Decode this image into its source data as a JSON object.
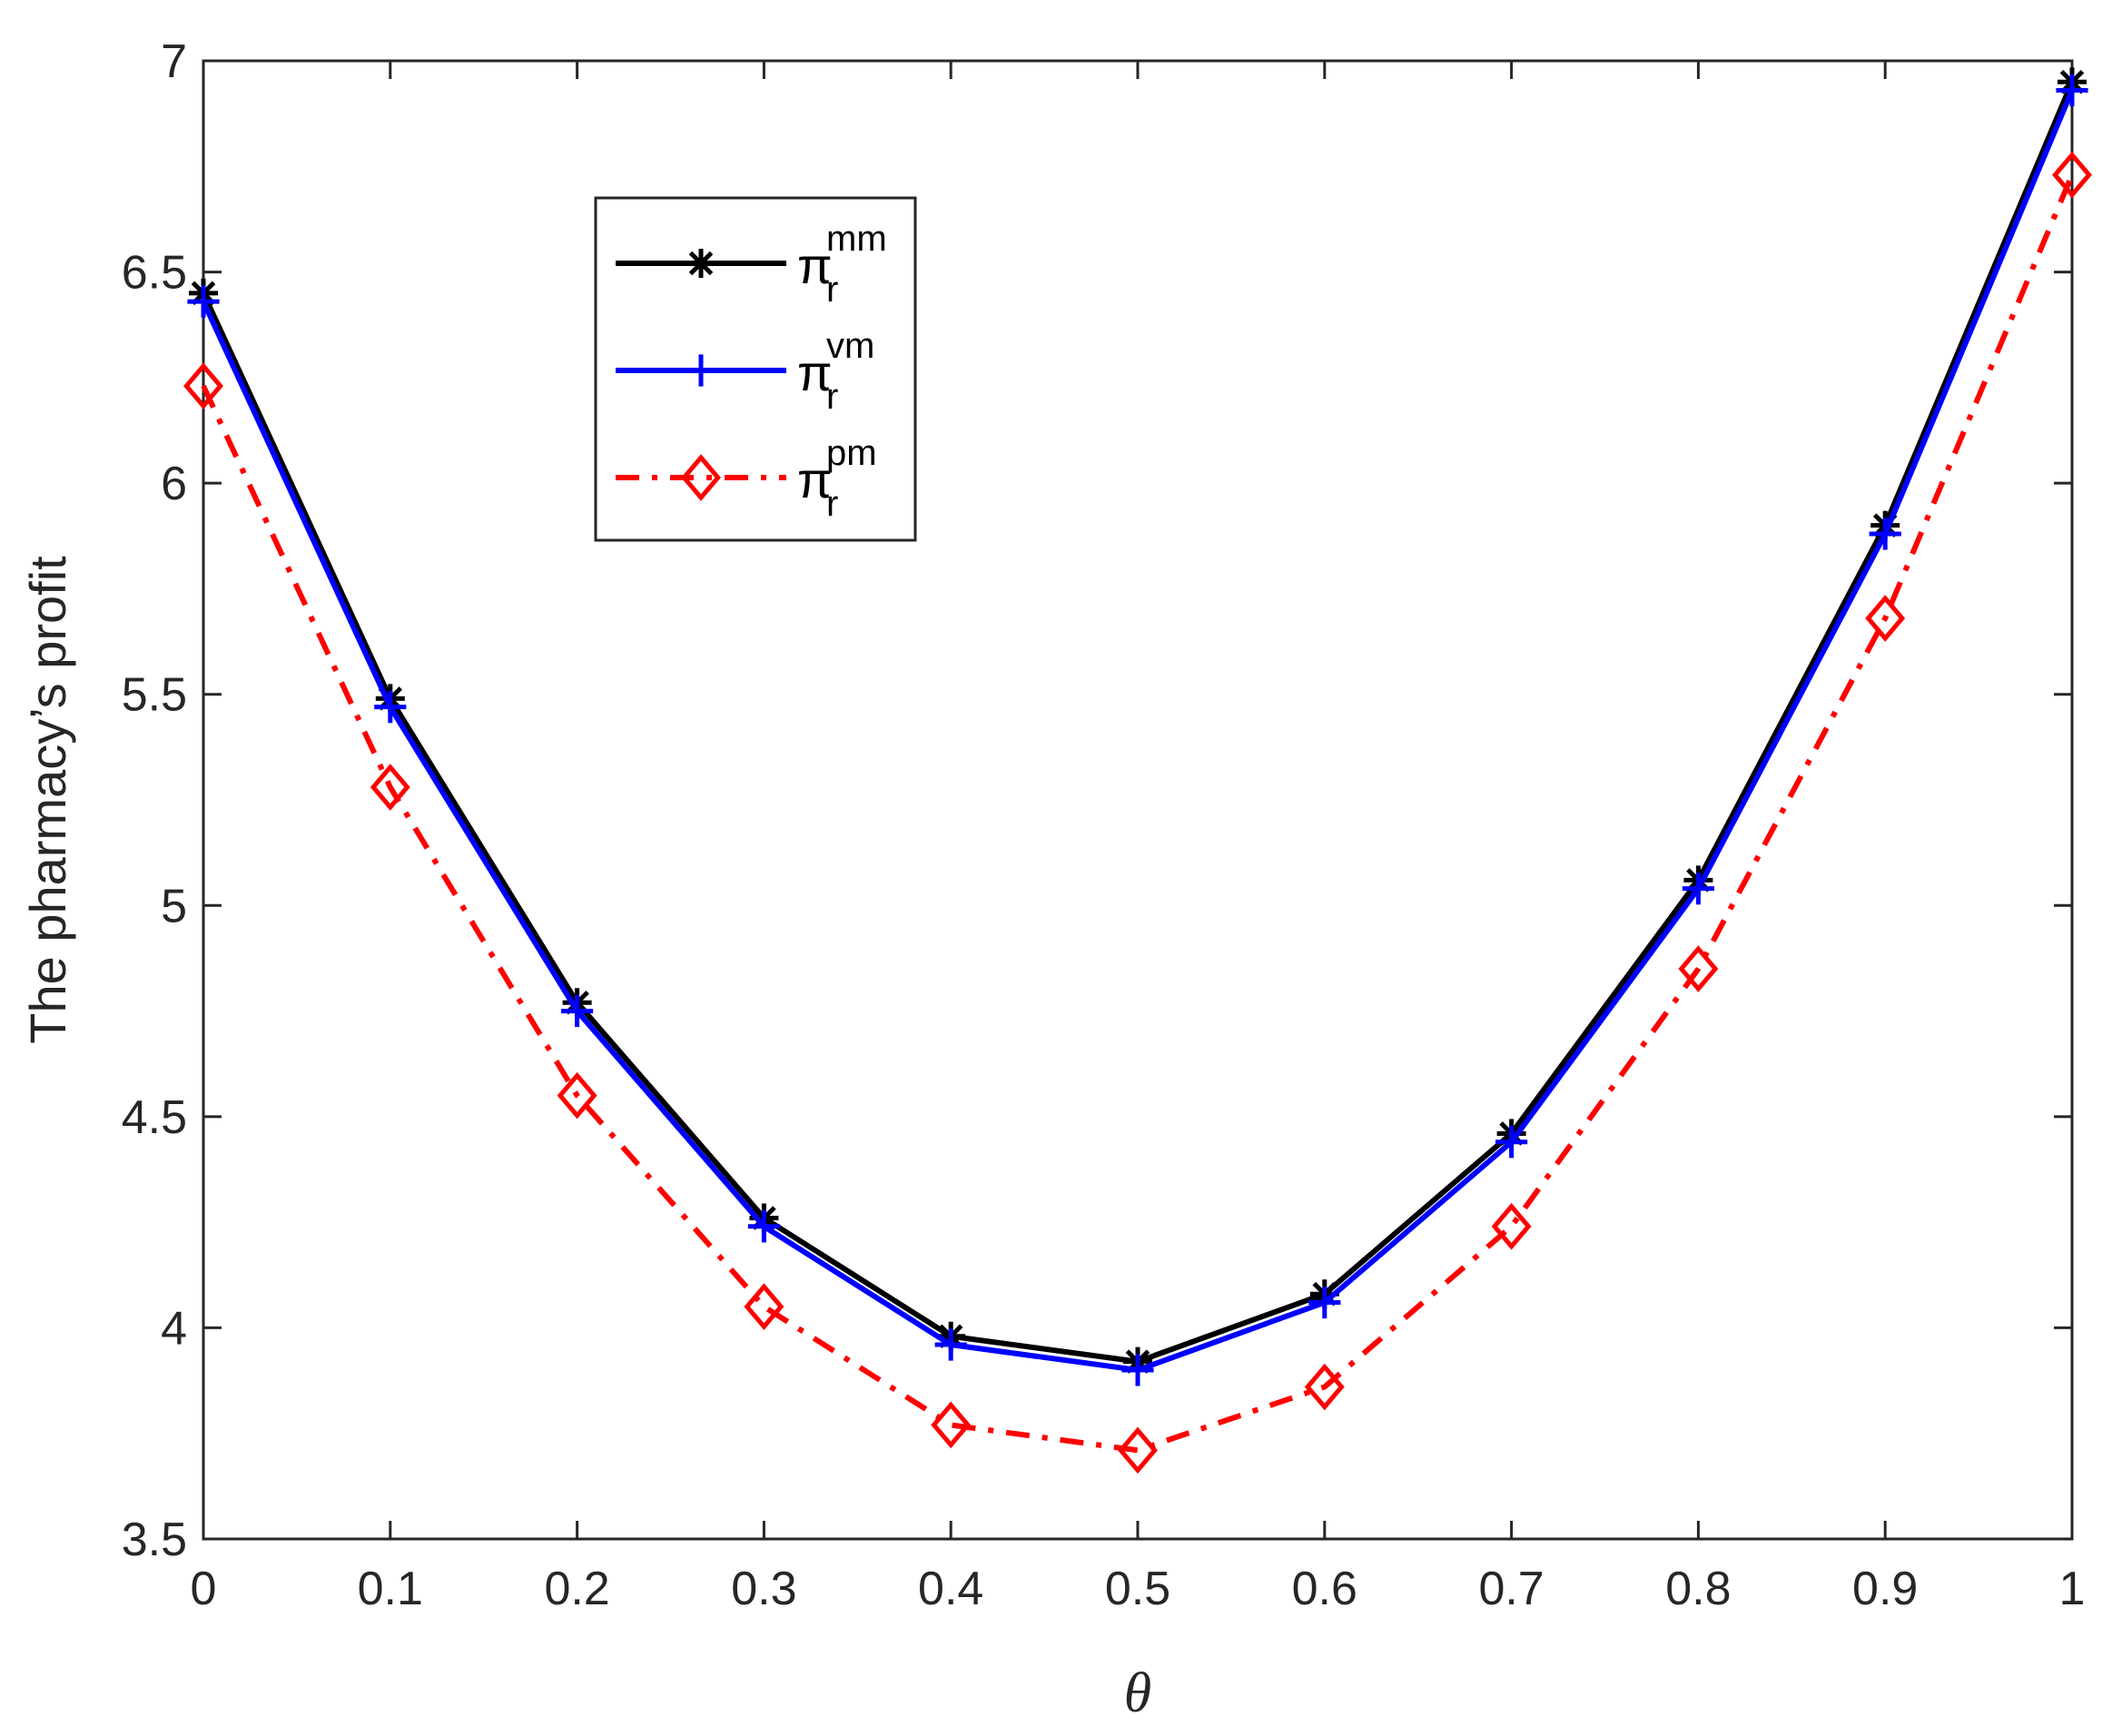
{
  "chart_data": {
    "type": "line",
    "xlabel": "θ",
    "ylabel": "The pharmacy’s profit",
    "xlim": [
      0,
      1
    ],
    "ylim": [
      3.5,
      7
    ],
    "xticks": [
      "0",
      "0.1",
      "0.2",
      "0.3",
      "0.4",
      "0.5",
      "0.6",
      "0.7",
      "0.8",
      "0.9",
      "1"
    ],
    "yticks": [
      "3.5",
      "4",
      "4.5",
      "5",
      "5.5",
      "6",
      "6.5",
      "7"
    ],
    "x": [
      0,
      0.1,
      0.2,
      0.3,
      0.4,
      0.5,
      0.6,
      0.7,
      0.8,
      0.9,
      1.0
    ],
    "grid": false,
    "legend_position": "upper-left-inside",
    "series": [
      {
        "symbol": "π",
        "subscript": "r",
        "superscript": "mm",
        "color": "#000000",
        "marker": "asterisk",
        "line": "solid",
        "values": [
          6.45,
          5.49,
          4.77,
          4.26,
          3.98,
          3.92,
          4.08,
          4.46,
          5.06,
          5.9,
          6.95
        ]
      },
      {
        "symbol": "π",
        "subscript": "r",
        "superscript": "vm",
        "color": "#0000ff",
        "marker": "plus",
        "line": "solid",
        "values": [
          6.43,
          5.47,
          4.75,
          4.24,
          3.96,
          3.9,
          4.06,
          4.44,
          5.04,
          5.88,
          6.93
        ]
      },
      {
        "symbol": "π",
        "subscript": "r",
        "superscript": "pm",
        "color": "#ff0000",
        "marker": "diamond",
        "line": "dashdot",
        "values": [
          6.23,
          5.28,
          4.55,
          4.05,
          3.77,
          3.71,
          3.86,
          4.24,
          4.85,
          5.68,
          6.73
        ]
      }
    ]
  }
}
